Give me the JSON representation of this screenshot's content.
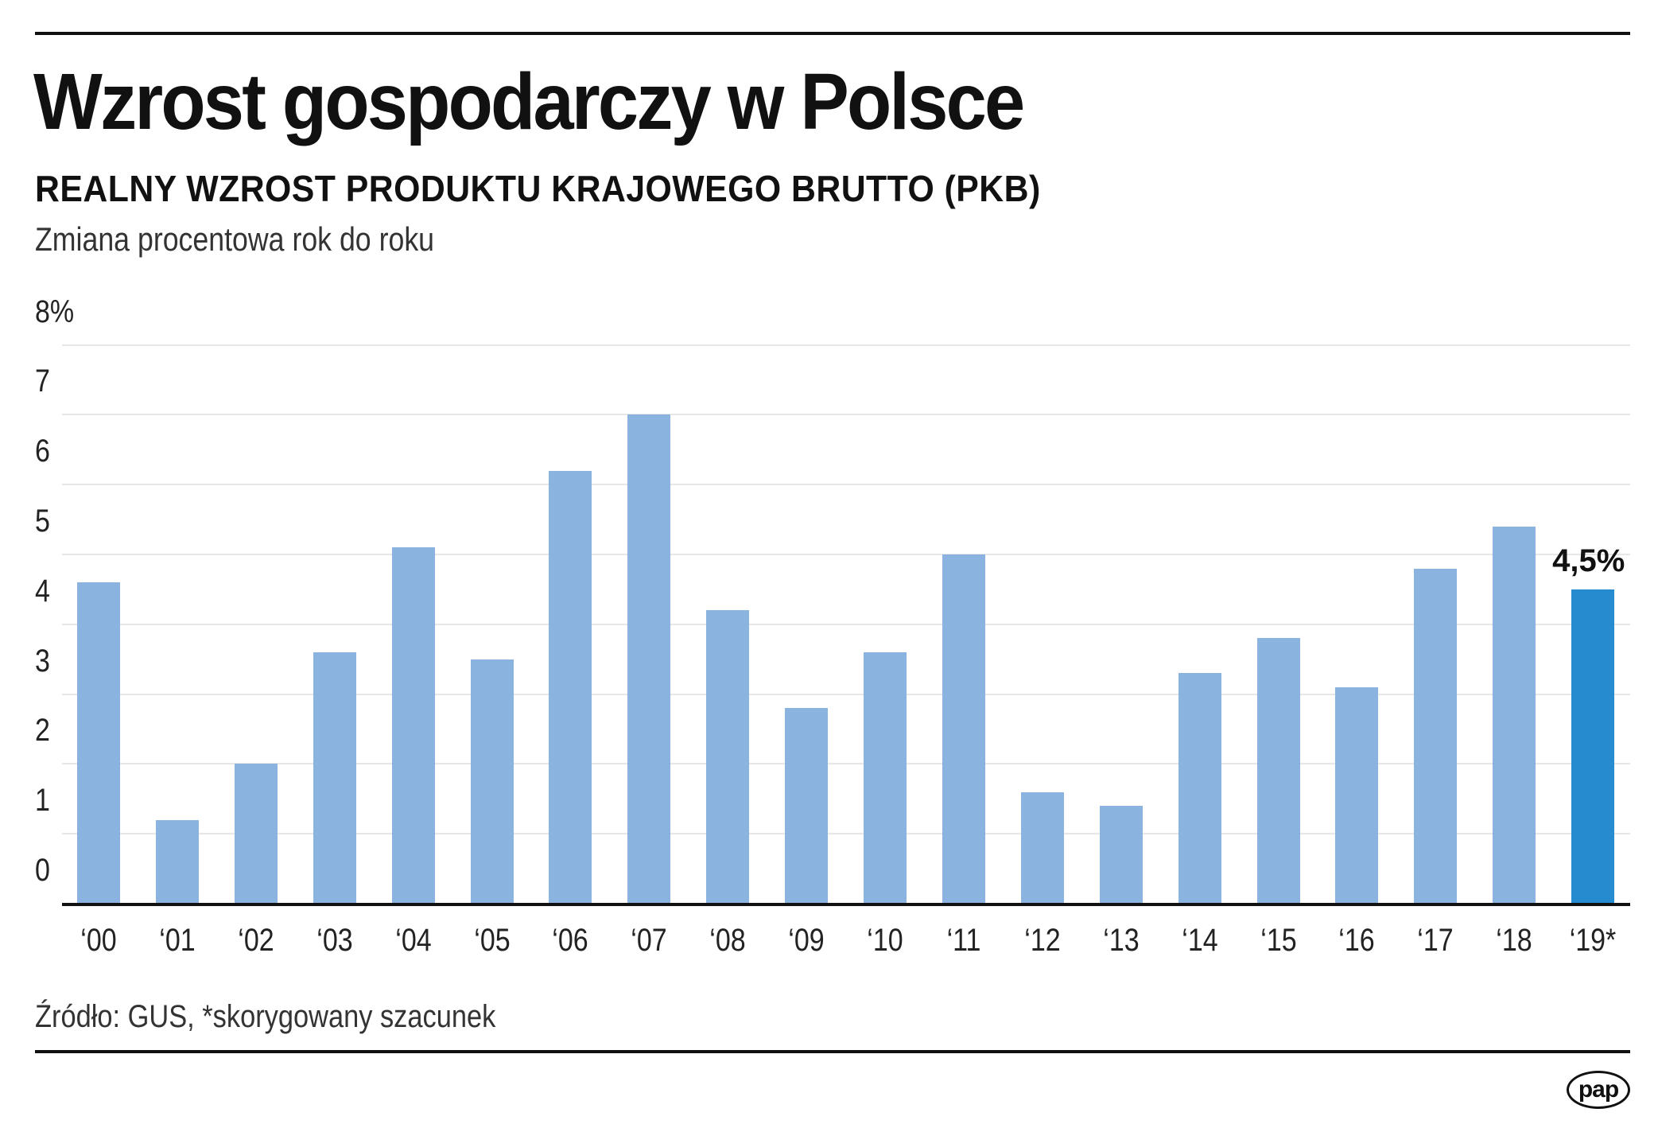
{
  "header": {
    "title": "Wzrost gospodarczy w Polsce",
    "subtitle": "REALNY WZROST PRODUKTU KRAJOWEGO BRUTTO (PKB)",
    "description": "Zmiana procentowa rok do roku"
  },
  "footer": {
    "source": "Źródło: GUS, *skorygowany szacunek",
    "logo": "pap"
  },
  "colors": {
    "bar": "#8ab3e0",
    "highlight_bar": "#268ccf",
    "gridline": "#e6e6e6",
    "text": "#111111"
  },
  "chart_data": {
    "type": "bar",
    "title": "Wzrost gospodarczy w Polsce",
    "subtitle": "REALNY WZROST PRODUKTU KRAJOWEGO BRUTTO (PKB)",
    "xlabel": "",
    "ylabel": "Zmiana procentowa rok do roku",
    "ylim": [
      0,
      8
    ],
    "yticks": [
      "0",
      "1",
      "2",
      "3",
      "4",
      "5",
      "6",
      "7",
      "8%"
    ],
    "grid": true,
    "legend": null,
    "categories": [
      "‘00",
      "‘01",
      "‘02",
      "‘03",
      "‘04",
      "‘05",
      "‘06",
      "‘07",
      "‘08",
      "‘09",
      "‘10",
      "‘11",
      "‘12",
      "‘13",
      "‘14",
      "‘15",
      "‘16",
      "‘17",
      "‘18",
      "‘19*"
    ],
    "values": [
      4.6,
      1.2,
      2.0,
      3.6,
      5.1,
      3.5,
      6.2,
      7.0,
      4.2,
      2.8,
      3.6,
      5.0,
      1.6,
      1.4,
      3.3,
      3.8,
      3.1,
      4.8,
      5.4,
      4.5
    ],
    "highlight_index": 19,
    "annotations": [
      {
        "category": "‘19*",
        "text": "4,5%"
      }
    ]
  }
}
